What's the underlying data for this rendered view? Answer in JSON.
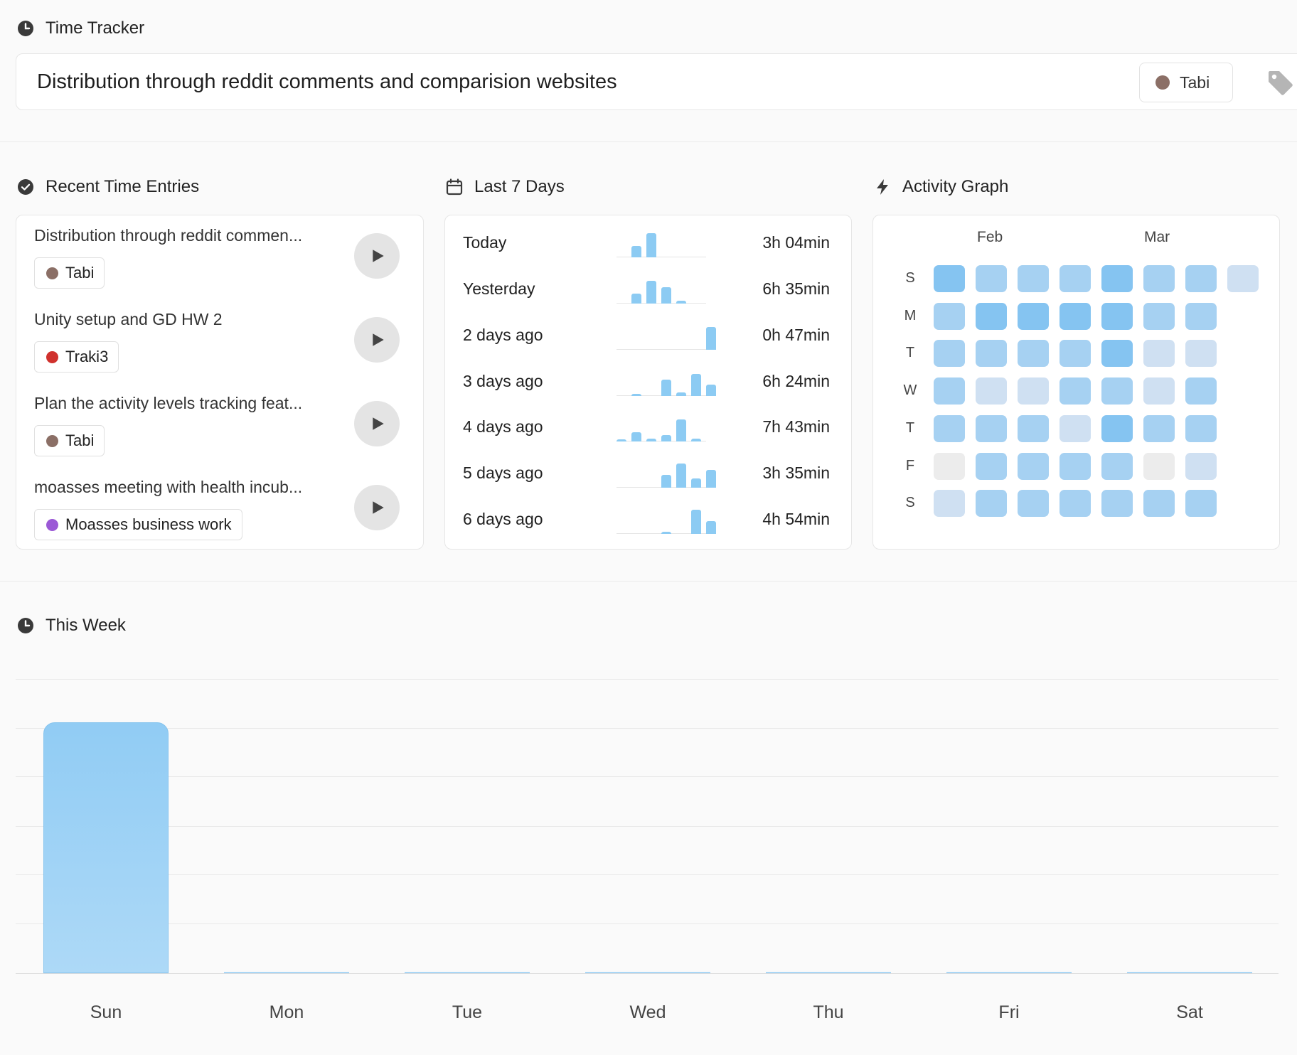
{
  "header": {
    "title": "Time Tracker",
    "task_description": "Distribution through reddit comments and comparision websites",
    "project": {
      "name": "Tabi",
      "color": "#8b6f66"
    }
  },
  "recent": {
    "title": "Recent Time Entries",
    "entries": [
      {
        "title": "Distribution through reddit commen...",
        "project": "Tabi",
        "color": "#8b6f66"
      },
      {
        "title": "Unity setup and GD HW 2",
        "project": "Traki3",
        "color": "#d0312d"
      },
      {
        "title": "Plan the activity levels tracking feat...",
        "project": "Tabi",
        "color": "#8b6f66"
      },
      {
        "title": "moasses meeting with health incub...",
        "project": "Moasses business work",
        "color": "#9b59d6"
      }
    ]
  },
  "last7": {
    "title": "Last 7 Days",
    "days": [
      {
        "label": "Today",
        "time": "3h 04min",
        "bars": [
          0,
          0.45,
          0.95,
          0,
          0,
          0,
          0
        ]
      },
      {
        "label": "Yesterday",
        "time": "6h 35min",
        "bars": [
          0,
          0.4,
          0.9,
          0.65,
          0.12,
          0,
          0
        ]
      },
      {
        "label": "2 days ago",
        "time": "0h 47min",
        "bars": [
          0,
          0,
          0,
          0,
          0,
          0,
          0.9
        ]
      },
      {
        "label": "3 days ago",
        "time": "6h 24min",
        "bars": [
          0,
          0.05,
          0,
          0.65,
          0.15,
          0.85,
          0.45
        ]
      },
      {
        "label": "4 days ago",
        "time": "7h 43min",
        "bars": [
          0.03,
          0.35,
          0.1,
          0.25,
          0.85,
          0.12,
          0
        ]
      },
      {
        "label": "5 days ago",
        "time": "3h 35min",
        "bars": [
          0,
          0,
          0,
          0.5,
          0.95,
          0.35,
          0.7
        ]
      },
      {
        "label": "6 days ago",
        "time": "4h 54min",
        "bars": [
          0,
          0,
          0,
          0.05,
          0,
          0.95,
          0.5
        ]
      }
    ]
  },
  "activity": {
    "title": "Activity Graph",
    "months": [
      "Feb",
      "Mar"
    ],
    "weekdays": [
      "S",
      "M",
      "T",
      "W",
      "T",
      "F",
      "S"
    ],
    "levels": [
      [
        3,
        2,
        2,
        2,
        3,
        2,
        2,
        1
      ],
      [
        2,
        3,
        3,
        3,
        3,
        2,
        2
      ],
      [
        2,
        2,
        2,
        2,
        3,
        1,
        1
      ],
      [
        2,
        1,
        1,
        2,
        2,
        1,
        2
      ],
      [
        2,
        2,
        2,
        1,
        3,
        2,
        2
      ],
      [
        0,
        2,
        2,
        2,
        2,
        0,
        1
      ],
      [
        1,
        2,
        2,
        2,
        2,
        2,
        2
      ]
    ],
    "level_colors": [
      "#ececec",
      "#cfe0f2",
      "#a6d1f2",
      "#85c4f1"
    ]
  },
  "week": {
    "title": "This Week",
    "days": [
      "Sun",
      "Mon",
      "Tue",
      "Wed",
      "Thu",
      "Fri",
      "Sat"
    ],
    "values": [
      0.92,
      0,
      0,
      0,
      0,
      0,
      0
    ]
  },
  "colors": {
    "accent": "#8ccbf3",
    "bar_top": "#91ccf4",
    "bar_bottom": "#add9f7"
  }
}
